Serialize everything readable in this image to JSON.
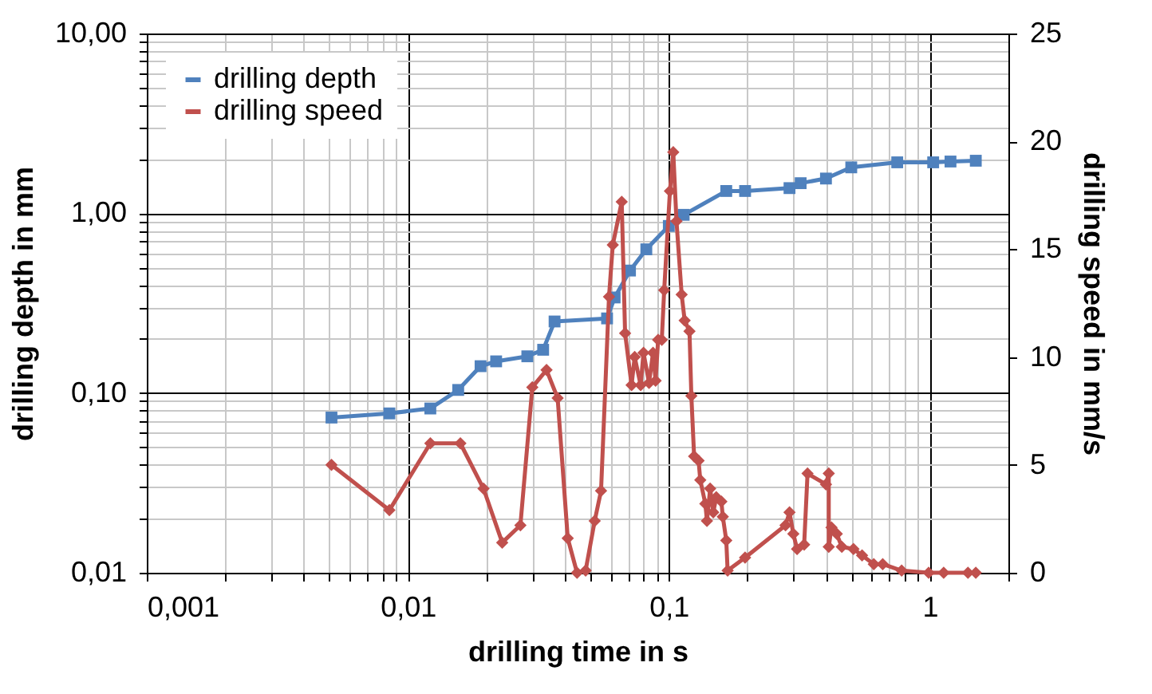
{
  "chart_data": {
    "type": "line",
    "xlabel": "drilling time in s",
    "ylabel": "drilling depth in mm",
    "y2label": "drilling speed in mm/s",
    "log": "xy",
    "grid": true,
    "legend": "top left",
    "line_style": "solid",
    "xlim": [
      0.001,
      2
    ],
    "xticks": [
      {
        "value": 0.001,
        "label": "0,001"
      },
      {
        "value": 0.002,
        "label": null
      },
      {
        "value": 0.003,
        "label": null
      },
      {
        "value": 0.004,
        "label": null
      },
      {
        "value": 0.005,
        "label": null
      },
      {
        "value": 0.006,
        "label": null
      },
      {
        "value": 0.007,
        "label": null
      },
      {
        "value": 0.008,
        "label": null
      },
      {
        "value": 0.009,
        "label": null
      },
      {
        "value": 0.01,
        "label": "0,01"
      },
      {
        "value": 0.02,
        "label": null
      },
      {
        "value": 0.03,
        "label": null
      },
      {
        "value": 0.04,
        "label": null
      },
      {
        "value": 0.05,
        "label": null
      },
      {
        "value": 0.06,
        "label": null
      },
      {
        "value": 0.07,
        "label": null
      },
      {
        "value": 0.08,
        "label": null
      },
      {
        "value": 0.09,
        "label": null
      },
      {
        "value": 0.1,
        "label": "0,1"
      },
      {
        "value": 0.2,
        "label": null
      },
      {
        "value": 0.3,
        "label": null
      },
      {
        "value": 0.4,
        "label": null
      },
      {
        "value": 0.5,
        "label": null
      },
      {
        "value": 0.6,
        "label": null
      },
      {
        "value": 0.7,
        "label": null
      },
      {
        "value": 0.8,
        "label": null
      },
      {
        "value": 0.9,
        "label": null
      },
      {
        "value": 1,
        "label": "1"
      },
      {
        "value": 2,
        "label": null
      }
    ],
    "ylim": [
      0.01,
      10
    ],
    "yticks": [
      {
        "value": 0.01,
        "label": "0,01"
      },
      {
        "value": 0.02,
        "label": null
      },
      {
        "value": 0.03,
        "label": null
      },
      {
        "value": 0.04,
        "label": null
      },
      {
        "value": 0.05,
        "label": null
      },
      {
        "value": 0.06,
        "label": null
      },
      {
        "value": 0.07,
        "label": null
      },
      {
        "value": 0.08,
        "label": null
      },
      {
        "value": 0.09,
        "label": null
      },
      {
        "value": 0.1,
        "label": "0,10"
      },
      {
        "value": 0.2,
        "label": null
      },
      {
        "value": 0.3,
        "label": null
      },
      {
        "value": 0.4,
        "label": null
      },
      {
        "value": 0.5,
        "label": null
      },
      {
        "value": 0.6,
        "label": null
      },
      {
        "value": 0.7,
        "label": null
      },
      {
        "value": 0.8,
        "label": null
      },
      {
        "value": 0.9,
        "label": null
      },
      {
        "value": 1,
        "label": "1,00"
      },
      {
        "value": 2,
        "label": null
      },
      {
        "value": 3,
        "label": null
      },
      {
        "value": 4,
        "label": null
      },
      {
        "value": 5,
        "label": null
      },
      {
        "value": 6,
        "label": null
      },
      {
        "value": 7,
        "label": null
      },
      {
        "value": 8,
        "label": null
      },
      {
        "value": 9,
        "label": null
      },
      {
        "value": 10,
        "label": "10,00"
      }
    ],
    "y2lim": [
      0,
      25
    ],
    "y2ticks": [
      0,
      5,
      10,
      15,
      20,
      25
    ],
    "series": [
      {
        "name": "drilling depth",
        "color": "#4f81bd",
        "marker": "square",
        "x": [
          0.0051,
          0.0085,
          0.0122,
          0.0156,
          0.019,
          0.0218,
          0.0287,
          0.033,
          0.0365,
          0.058,
          0.062,
          0.071,
          0.082,
          0.1,
          0.114,
          0.166,
          0.196,
          0.29,
          0.32,
          0.4,
          0.5,
          0.75,
          1.03,
          1.2,
          1.5
        ],
        "values": [
          0.073,
          0.077,
          0.082,
          0.104,
          0.141,
          0.15,
          0.16,
          0.174,
          0.25,
          0.26,
          0.34,
          0.48,
          0.63,
          0.85,
          0.98,
          1.33,
          1.33,
          1.38,
          1.47,
          1.56,
          1.8,
          1.92,
          1.92,
          1.94,
          1.96
        ]
      },
      {
        "name": "drilling speed",
        "color": "#c0504d",
        "marker": "diamond",
        "axis": "y2",
        "x": [
          0.0051,
          0.0085,
          0.0122,
          0.0159,
          0.0195,
          0.023,
          0.027,
          0.03,
          0.034,
          0.0375,
          0.041,
          0.0445,
          0.048,
          0.052,
          0.055,
          0.059,
          0.061,
          0.066,
          0.068,
          0.072,
          0.074,
          0.078,
          0.08,
          0.084,
          0.087,
          0.089,
          0.091,
          0.094,
          0.096,
          0.101,
          0.104,
          0.107,
          0.112,
          0.115,
          0.12,
          0.122,
          0.125,
          0.13,
          0.132,
          0.138,
          0.14,
          0.144,
          0.148,
          0.152,
          0.159,
          0.161,
          0.166,
          0.168,
          0.196,
          0.28,
          0.29,
          0.3,
          0.31,
          0.33,
          0.34,
          0.4,
          0.41,
          0.41,
          0.42,
          0.44,
          0.46,
          0.51,
          0.55,
          0.61,
          0.66,
          0.78,
          0.99,
          1.13,
          1.4,
          1.5
        ],
        "values": [
          5.0,
          2.9,
          6.0,
          6.0,
          3.9,
          1.4,
          2.2,
          8.6,
          9.4,
          8.1,
          1.6,
          0.0,
          0.1,
          2.4,
          3.8,
          12.8,
          15.2,
          17.2,
          11.1,
          8.7,
          10.0,
          8.7,
          10.2,
          8.8,
          10.2,
          8.9,
          10.8,
          10.8,
          13.1,
          17.7,
          19.5,
          16.3,
          12.9,
          11.7,
          11.2,
          8.2,
          5.4,
          5.2,
          4.3,
          3.2,
          2.4,
          3.9,
          2.8,
          3.5,
          3.3,
          2.6,
          1.5,
          0.1,
          0.7,
          2.2,
          2.8,
          1.8,
          1.1,
          1.3,
          4.6,
          4.1,
          4.6,
          1.2,
          2.1,
          1.8,
          1.2,
          1.1,
          0.8,
          0.4,
          0.4,
          0.1,
          0.0,
          0.0,
          0.0,
          0.0
        ]
      }
    ]
  }
}
